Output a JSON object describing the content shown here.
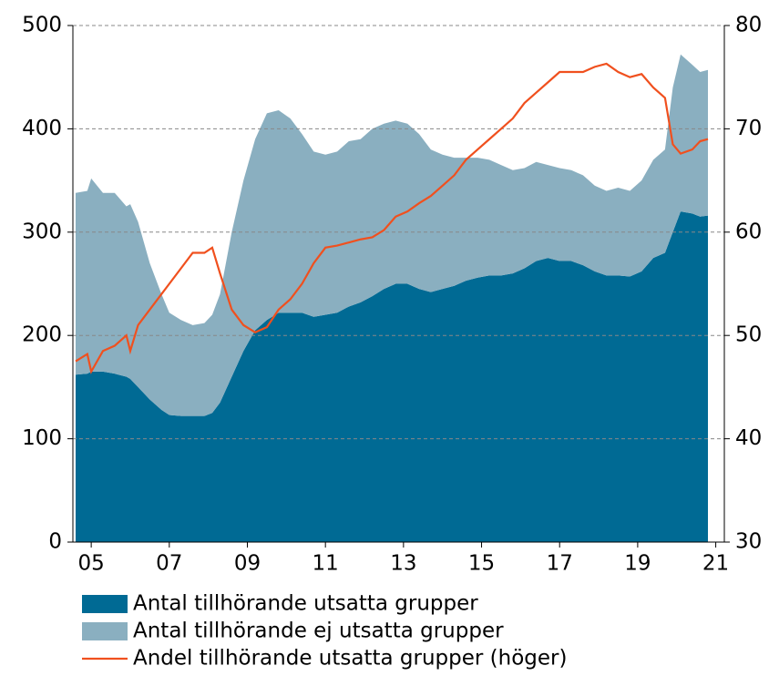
{
  "chart_data": {
    "type": "stacked-area-line",
    "x": [
      2004.6,
      2004.9,
      2005.0,
      2005.3,
      2005.6,
      2005.9,
      2006.0,
      2006.2,
      2006.5,
      2006.8,
      2007.0,
      2007.3,
      2007.6,
      2007.9,
      2008.1,
      2008.3,
      2008.6,
      2008.9,
      2009.2,
      2009.5,
      2009.8,
      2010.1,
      2010.4,
      2010.7,
      2011.0,
      2011.3,
      2011.6,
      2011.9,
      2012.2,
      2012.5,
      2012.8,
      2013.1,
      2013.4,
      2013.7,
      2014.0,
      2014.3,
      2014.6,
      2014.9,
      2015.2,
      2015.5,
      2015.8,
      2016.1,
      2016.4,
      2016.7,
      2017.0,
      2017.3,
      2017.6,
      2017.9,
      2018.2,
      2018.5,
      2018.8,
      2019.1,
      2019.4,
      2019.7,
      2019.9,
      2020.1,
      2020.4,
      2020.6,
      2020.8
    ],
    "series": [
      {
        "name": "Antal tillhörande utsatta grupper",
        "color": "#006a94",
        "values": [
          162,
          163,
          165,
          165,
          163,
          160,
          158,
          150,
          138,
          128,
          123,
          122,
          122,
          122,
          125,
          135,
          160,
          185,
          205,
          215,
          222,
          222,
          222,
          218,
          220,
          222,
          228,
          232,
          238,
          245,
          250,
          250,
          245,
          242,
          245,
          248,
          253,
          256,
          258,
          258,
          260,
          265,
          272,
          275,
          272,
          272,
          268,
          262,
          258,
          258,
          257,
          262,
          275,
          280,
          300,
          320,
          318,
          315,
          316
        ]
      },
      {
        "name": "Antal tillhörande ej utsatta grupper",
        "color": "#8aafc0",
        "values": [
          176,
          177,
          187,
          173,
          175,
          165,
          169,
          160,
          132,
          112,
          99,
          93,
          88,
          90,
          95,
          105,
          140,
          165,
          185,
          200,
          196,
          188,
          173,
          160,
          155,
          156,
          160,
          158,
          162,
          160,
          158,
          155,
          150,
          138,
          130,
          124,
          119,
          116,
          112,
          107,
          100,
          97,
          96,
          90,
          90,
          88,
          87,
          83,
          82,
          85,
          83,
          88,
          95,
          100,
          140,
          152,
          144,
          140,
          141
        ]
      },
      {
        "name": "Andel tillhörande utsatta grupper (höger)",
        "color": "#f0501e",
        "axis": "y2",
        "values": [
          47.5,
          48.2,
          46.5,
          48.5,
          49,
          50,
          48.5,
          51,
          52.5,
          54,
          55,
          56.5,
          58,
          58,
          58.5,
          56,
          52.5,
          51,
          50.3,
          50.8,
          52.5,
          53.5,
          55,
          57,
          58.5,
          58.7,
          59,
          59.3,
          59.5,
          60.2,
          61.5,
          62,
          62.8,
          63.5,
          64.5,
          65.5,
          67,
          68,
          69,
          70,
          71,
          72.5,
          73.5,
          74.5,
          75.5,
          75.5,
          75.5,
          76,
          76.3,
          75.5,
          75,
          75.3,
          74,
          73,
          68.5,
          67.6,
          68,
          68.8,
          69
        ]
      }
    ],
    "xlim": [
      2004.53,
      2021.22
    ],
    "xticks": [
      {
        "value": 2005,
        "label": "05"
      },
      {
        "value": 2007,
        "label": "07"
      },
      {
        "value": 2009,
        "label": "09"
      },
      {
        "value": 2011,
        "label": "11"
      },
      {
        "value": 2013,
        "label": "13"
      },
      {
        "value": 2015,
        "label": "15"
      },
      {
        "value": 2017,
        "label": "17"
      },
      {
        "value": 2019,
        "label": "19"
      },
      {
        "value": 2021,
        "label": "21"
      }
    ],
    "ylim": [
      0,
      500
    ],
    "yticks": [
      0,
      100,
      200,
      300,
      400,
      500
    ],
    "y2lim": [
      30,
      80
    ],
    "y2ticks": [
      30,
      40,
      50,
      60,
      70,
      80
    ],
    "grid": true
  }
}
